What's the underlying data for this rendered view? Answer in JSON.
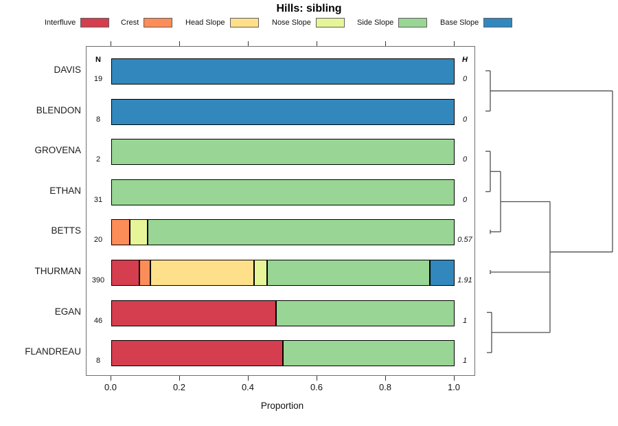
{
  "title": "Hills: sibling",
  "legend": {
    "items": [
      {
        "label": "Interfluve",
        "color": "#D53E4F"
      },
      {
        "label": "Crest",
        "color": "#FC8D59"
      },
      {
        "label": "Head Slope",
        "color": "#FEE08B"
      },
      {
        "label": "Nose Slope",
        "color": "#E6F598"
      },
      {
        "label": "Side Slope",
        "color": "#99D594"
      },
      {
        "label": "Base Slope",
        "color": "#3288BD"
      }
    ]
  },
  "columns": {
    "n_header": "N",
    "h_header": "H"
  },
  "axis": {
    "label": "Proportion",
    "tick_labels": [
      "0.0",
      "0.2",
      "0.4",
      "0.6",
      "0.8",
      "1.0"
    ]
  },
  "chart_data": {
    "type": "bar",
    "variant": "horizontal-stacked-proportion",
    "title": "Hills: sibling",
    "xlabel": "Proportion",
    "xlim": [
      0,
      1
    ],
    "x_ticks": [
      0.0,
      0.2,
      0.4,
      0.6,
      0.8,
      1.0
    ],
    "grid": false,
    "categories": [
      "Interfluve",
      "Crest",
      "Head Slope",
      "Nose Slope",
      "Side Slope",
      "Base Slope"
    ],
    "colors": [
      "#D53E4F",
      "#FC8D59",
      "#FEE08B",
      "#E6F598",
      "#99D594",
      "#3288BD"
    ],
    "rows": [
      {
        "name": "DAVIS",
        "N": "19",
        "H": "0",
        "proportions": [
          0,
          0,
          0,
          0,
          0,
          1
        ]
      },
      {
        "name": "BLENDON",
        "N": "8",
        "H": "0",
        "proportions": [
          0,
          0,
          0,
          0,
          0,
          1
        ]
      },
      {
        "name": "GROVENA",
        "N": "2",
        "H": "0",
        "proportions": [
          0,
          0,
          0,
          0,
          1,
          0
        ]
      },
      {
        "name": "ETHAN",
        "N": "31",
        "H": "0",
        "proportions": [
          0,
          0,
          0,
          0,
          1,
          0
        ]
      },
      {
        "name": "BETTS",
        "N": "20",
        "H": "0.57",
        "proportions": [
          0,
          0.05,
          0,
          0.05,
          0.9,
          0
        ]
      },
      {
        "name": "THURMAN",
        "N": "390",
        "H": "1.91",
        "proportions": [
          0.08,
          0.028,
          0.306,
          0.034,
          0.482,
          0.07
        ]
      },
      {
        "name": "EGAN",
        "N": "46",
        "H": "1",
        "proportions": [
          0.48,
          0,
          0,
          0,
          0.52,
          0
        ]
      },
      {
        "name": "FLANDREAU",
        "N": "8",
        "H": "1",
        "proportions": [
          0.5,
          0,
          0,
          0,
          0.5,
          0
        ]
      }
    ],
    "dendrogram": {
      "position": "right",
      "linkage": "((DAVIS,BLENDON),(((GROVENA,ETHAN),BETTS),(THURMAN,(EGAN,FLANDREAU))))"
    }
  }
}
